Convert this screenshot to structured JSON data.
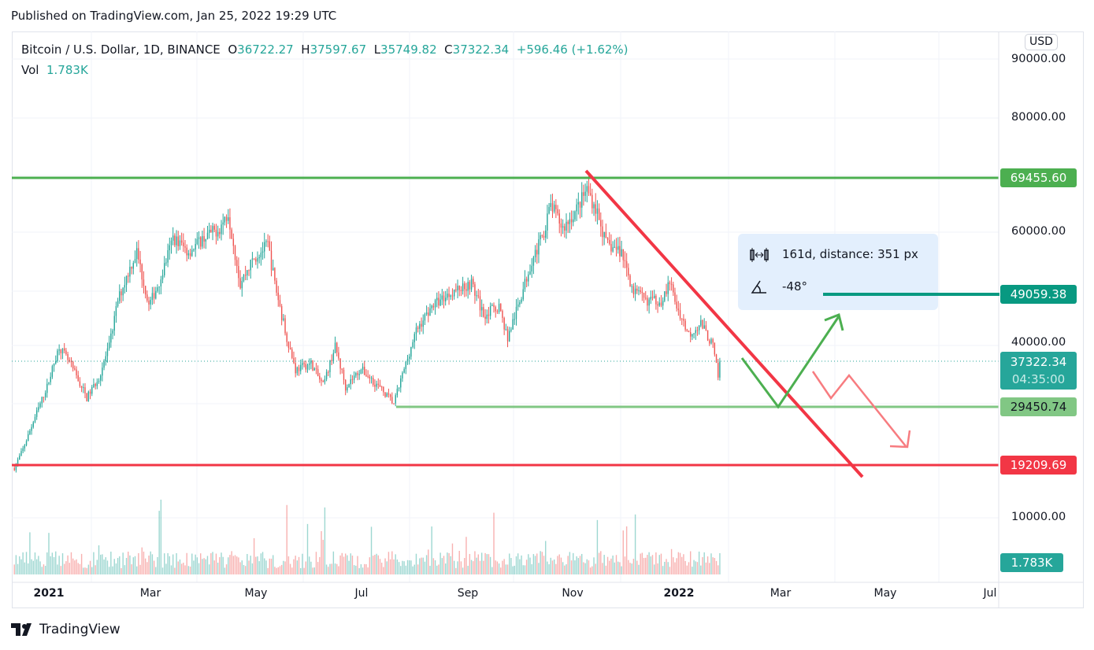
{
  "published": "Published on TradingView.com, Jan 25, 2022 19:29 UTC",
  "legend": {
    "symbol": "Bitcoin / U.S. Dollar, 1D, BINANCE",
    "o_label": "O",
    "o": "36722.27",
    "h_label": "H",
    "h": "37597.67",
    "l_label": "L",
    "l": "35749.82",
    "c_label": "C",
    "c": "37322.34",
    "change": "+596.46 (+1.62%)",
    "vol_label": "Vol",
    "vol": "1.783K"
  },
  "currency": "USD",
  "price_axis": [
    "90000.00",
    "80000.00",
    "60000.00",
    "40000.00",
    "10000.00"
  ],
  "price_labels": {
    "resistance": "69455.60",
    "target": "49059.38",
    "last": "37322.34",
    "countdown": "04:35:00",
    "support": "29450.74",
    "low": "19209.69",
    "volume": "1.783K"
  },
  "time_axis": [
    "2021",
    "Mar",
    "May",
    "Jul",
    "Sep",
    "Nov",
    "2022",
    "Mar",
    "May",
    "Jul"
  ],
  "measure": {
    "range": "161d, distance: 351 px",
    "angle": "-48°"
  },
  "logo": "TradingView",
  "colors": {
    "up": "#26a69a",
    "down": "#ef5350",
    "resistance": "#4caf50",
    "support": "#81c784",
    "low": "#f23645",
    "target": "#089981",
    "tooltip": "#e3effd"
  },
  "chart_data": {
    "type": "candlestick",
    "title": "Bitcoin / U.S. Dollar, 1D, BINANCE",
    "y_scale": "linear",
    "ylim": [
      0,
      98000
    ],
    "xlim": [
      "2020-12-11",
      "2022-07-15"
    ],
    "grid": true,
    "approx_close_path": [
      [
        "2020-12-12",
        18700
      ],
      [
        "2020-12-17",
        22000
      ],
      [
        "2020-12-24",
        27600
      ],
      [
        "2020-12-31",
        33000
      ],
      [
        "2021-01-07",
        40000
      ],
      [
        "2021-01-14",
        36500
      ],
      [
        "2021-01-23",
        31000
      ],
      [
        "2021-01-30",
        34500
      ],
      [
        "2021-02-05",
        40000
      ],
      [
        "2021-02-10",
        48000
      ],
      [
        "2021-02-17",
        53700
      ],
      [
        "2021-02-21",
        56500
      ],
      [
        "2021-02-28",
        47000
      ],
      [
        "2021-03-07",
        52000
      ],
      [
        "2021-03-14",
        59000
      ],
      [
        "2021-03-23",
        56500
      ],
      [
        "2021-04-01",
        59000
      ],
      [
        "2021-04-10",
        60600
      ],
      [
        "2021-04-15",
        63400
      ],
      [
        "2021-04-22",
        51000
      ],
      [
        "2021-04-29",
        55000
      ],
      [
        "2021-05-08",
        57800
      ],
      [
        "2021-05-12",
        51000
      ],
      [
        "2021-05-18",
        42700
      ],
      [
        "2021-05-24",
        35900
      ],
      [
        "2021-06-02",
        37000
      ],
      [
        "2021-06-09",
        33000
      ],
      [
        "2021-06-16",
        40000
      ],
      [
        "2021-06-22",
        33000
      ],
      [
        "2021-07-01",
        36000
      ],
      [
        "2021-07-11",
        33000
      ],
      [
        "2021-07-20",
        30000
      ],
      [
        "2021-07-27",
        37000
      ],
      [
        "2021-08-02",
        42700
      ],
      [
        "2021-08-11",
        47000
      ],
      [
        "2021-08-23",
        49600
      ],
      [
        "2021-09-03",
        51000
      ],
      [
        "2021-09-10",
        45500
      ],
      [
        "2021-09-19",
        47000
      ],
      [
        "2021-09-24",
        41400
      ],
      [
        "2021-10-01",
        48000
      ],
      [
        "2021-10-08",
        55000
      ],
      [
        "2021-10-14",
        59000
      ],
      [
        "2021-10-19",
        64700
      ],
      [
        "2021-10-26",
        60600
      ],
      [
        "2021-11-02",
        63400
      ],
      [
        "2021-11-09",
        67500
      ],
      [
        "2021-11-15",
        63400
      ],
      [
        "2021-11-20",
        57800
      ],
      [
        "2021-11-29",
        56500
      ],
      [
        "2021-12-06",
        49600
      ],
      [
        "2021-12-13",
        48000
      ],
      [
        "2021-12-22",
        48000
      ],
      [
        "2021-12-27",
        51000
      ],
      [
        "2021-12-31",
        47000
      ],
      [
        "2022-01-07",
        42000
      ],
      [
        "2022-01-14",
        44000
      ],
      [
        "2022-01-21",
        40000
      ],
      [
        "2022-01-24",
        34500
      ],
      [
        "2022-01-25",
        37322.34
      ]
    ],
    "horizontal_levels": [
      69455.6,
      49059.38,
      29450.74,
      19209.69
    ],
    "last_price": 37322.34
  }
}
